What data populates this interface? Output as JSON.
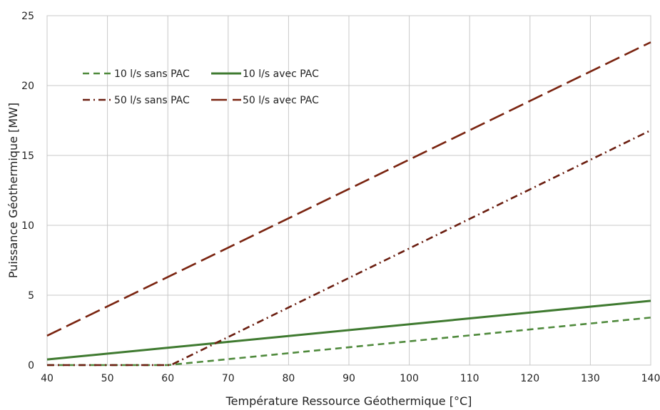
{
  "chart_data": {
    "type": "line",
    "xlabel": "Température Ressource Géothermique [°C]",
    "ylabel": "Puissance Géothermique [MW]",
    "xlim": [
      40,
      140
    ],
    "ylim": [
      0,
      25
    ],
    "xticks": [
      "40",
      "50",
      "60",
      "70",
      "80",
      "90",
      "100",
      "110",
      "120",
      "130",
      "140"
    ],
    "yticks": [
      "0",
      "5",
      "10",
      "15",
      "20",
      "25"
    ],
    "grid": true,
    "legend_position": "top-left",
    "series": [
      {
        "name": "10 l/s sans PAC",
        "color": "#4f8a3c",
        "style": "dashed",
        "x": [
          40,
          60,
          140
        ],
        "y": [
          0,
          0,
          3.4
        ]
      },
      {
        "name": "10 l/s avec PAC",
        "color": "#3f7a30",
        "style": "solid",
        "x": [
          40,
          140
        ],
        "y": [
          0.4,
          4.6
        ]
      },
      {
        "name": "50 l/s sans PAC",
        "color": "#6b1e10",
        "style": "dashdot",
        "x": [
          40,
          60.5,
          140
        ],
        "y": [
          0,
          0,
          16.8
        ]
      },
      {
        "name": "50 l/s avec PAC",
        "color": "#7a2410",
        "style": "longdash",
        "x": [
          40,
          140
        ],
        "y": [
          2.1,
          23.1
        ]
      }
    ]
  }
}
